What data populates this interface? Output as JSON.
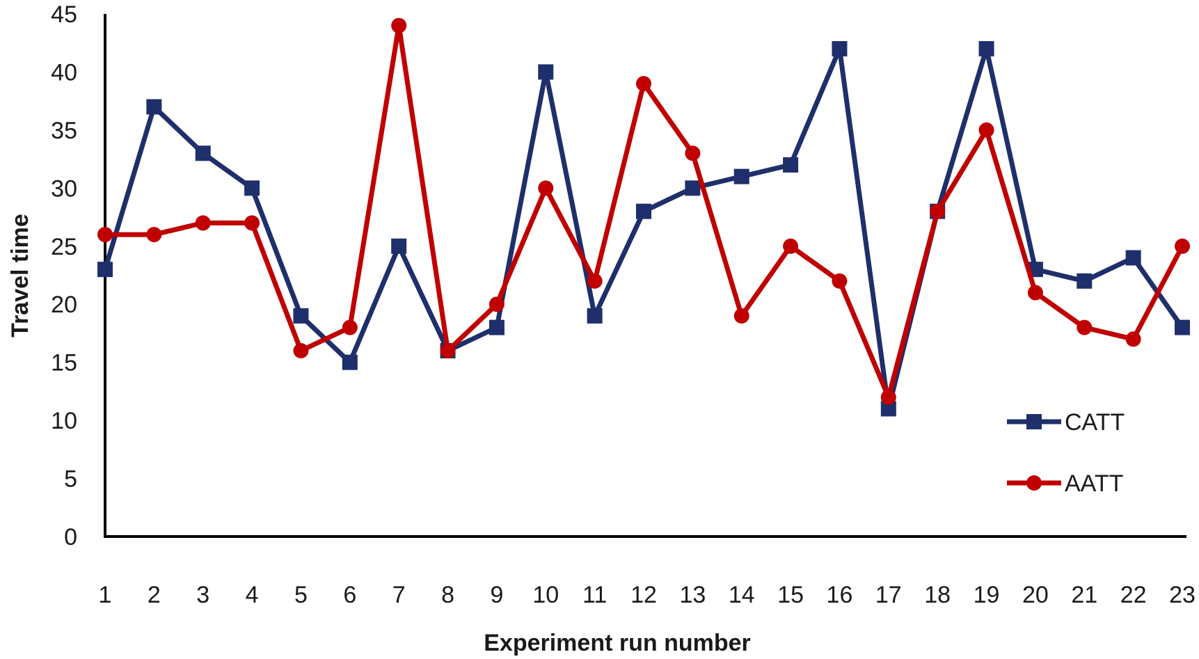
{
  "chart_data": {
    "type": "line",
    "xlabel": "Experiment run number",
    "ylabel": "Travel time",
    "categories": [
      "1",
      "2",
      "3",
      "4",
      "5",
      "6",
      "7",
      "8",
      "9",
      "10",
      "11",
      "12",
      "13",
      "14",
      "15",
      "16",
      "17",
      "18",
      "19",
      "20",
      "21",
      "22",
      "23"
    ],
    "ylim": [
      0,
      45
    ],
    "yticks": [
      0,
      5,
      10,
      15,
      20,
      25,
      30,
      35,
      40,
      45
    ],
    "grid": false,
    "legend_position": "right",
    "series": [
      {
        "name": "CATT",
        "color": "#1f2f6b",
        "marker": "square",
        "values": [
          23,
          37,
          33,
          30,
          19,
          15,
          25,
          16,
          18,
          40,
          19,
          28,
          30,
          31,
          32,
          42,
          11,
          28,
          42,
          23,
          22,
          24,
          18
        ]
      },
      {
        "name": "AATT",
        "color": "#c00000",
        "marker": "circle",
        "values": [
          26,
          26,
          27,
          27,
          16,
          18,
          44,
          16,
          20,
          30,
          22,
          39,
          33,
          19,
          25,
          22,
          12,
          28,
          35,
          21,
          18,
          17,
          25
        ]
      }
    ]
  }
}
